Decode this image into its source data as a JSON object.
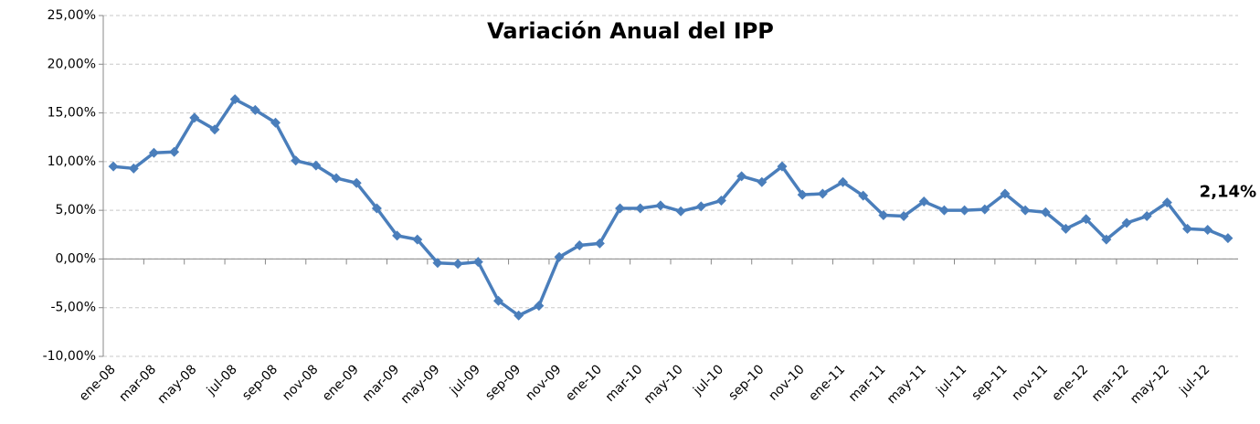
{
  "chart_data": {
    "type": "line",
    "title": "Variación Anual del IPP",
    "categories": [
      "ene-08",
      null,
      "mar-08",
      null,
      "may-08",
      null,
      "jul-08",
      null,
      "sep-08",
      null,
      "nov-08",
      null,
      "ene-09",
      null,
      "mar-09",
      null,
      "may-09",
      null,
      "jul-09",
      null,
      "sep-09",
      null,
      "nov-09",
      null,
      "ene-10",
      null,
      "mar-10",
      null,
      "may-10",
      null,
      "jul-10",
      null,
      "sep-10",
      null,
      "nov-10",
      null,
      "ene-11",
      null,
      "mar-11",
      null,
      "may-11",
      null,
      "jul-11",
      null,
      "sep-11",
      null,
      "nov-11",
      null,
      "ene-12",
      null,
      "mar-12",
      null,
      "may-12",
      null,
      "jul-12",
      null
    ],
    "series": [
      {
        "color": "#4a7ebb",
        "values": [
          9.5,
          9.3,
          10.9,
          11.0,
          14.5,
          13.3,
          16.4,
          15.3,
          14.0,
          10.1,
          9.6,
          8.3,
          7.8,
          5.2,
          2.4,
          2.0,
          -0.4,
          -0.5,
          -0.3,
          -4.3,
          -5.8,
          -4.8,
          0.2,
          1.4,
          1.6,
          5.2,
          5.2,
          5.5,
          4.9,
          5.4,
          6.0,
          8.5,
          7.9,
          9.5,
          6.6,
          6.7,
          7.9,
          6.5,
          4.5,
          4.4,
          5.9,
          5.0,
          5.0,
          5.1,
          6.7,
          5.0,
          4.8,
          3.1,
          4.1,
          2.0,
          3.7,
          4.4,
          5.8,
          3.1,
          3.0,
          2.14
        ],
        "value_labels": [
          null,
          null,
          null,
          null,
          null,
          null,
          null,
          null,
          null,
          null,
          null,
          null,
          null,
          null,
          null,
          null,
          null,
          null,
          null,
          null,
          null,
          null,
          null,
          null,
          null,
          null,
          null,
          null,
          null,
          null,
          null,
          null,
          null,
          null,
          null,
          null,
          null,
          null,
          null,
          null,
          null,
          null,
          null,
          null,
          null,
          null,
          null,
          null,
          null,
          null,
          null,
          null,
          null,
          null,
          null,
          "2,14%"
        ]
      }
    ],
    "ylim": [
      -10,
      25
    ],
    "yticks": [
      {
        "value": -10,
        "label": "-10,00%"
      },
      {
        "value": -5,
        "label": "-5,00%"
      },
      {
        "value": 0,
        "label": "0,00%"
      },
      {
        "value": 5,
        "label": "5,00%"
      },
      {
        "value": 10,
        "label": "10,00%"
      },
      {
        "value": 15,
        "label": "15,00%"
      },
      {
        "value": 20,
        "label": "20,00%"
      },
      {
        "value": 25,
        "label": "25,00%"
      }
    ],
    "grid": true
  }
}
